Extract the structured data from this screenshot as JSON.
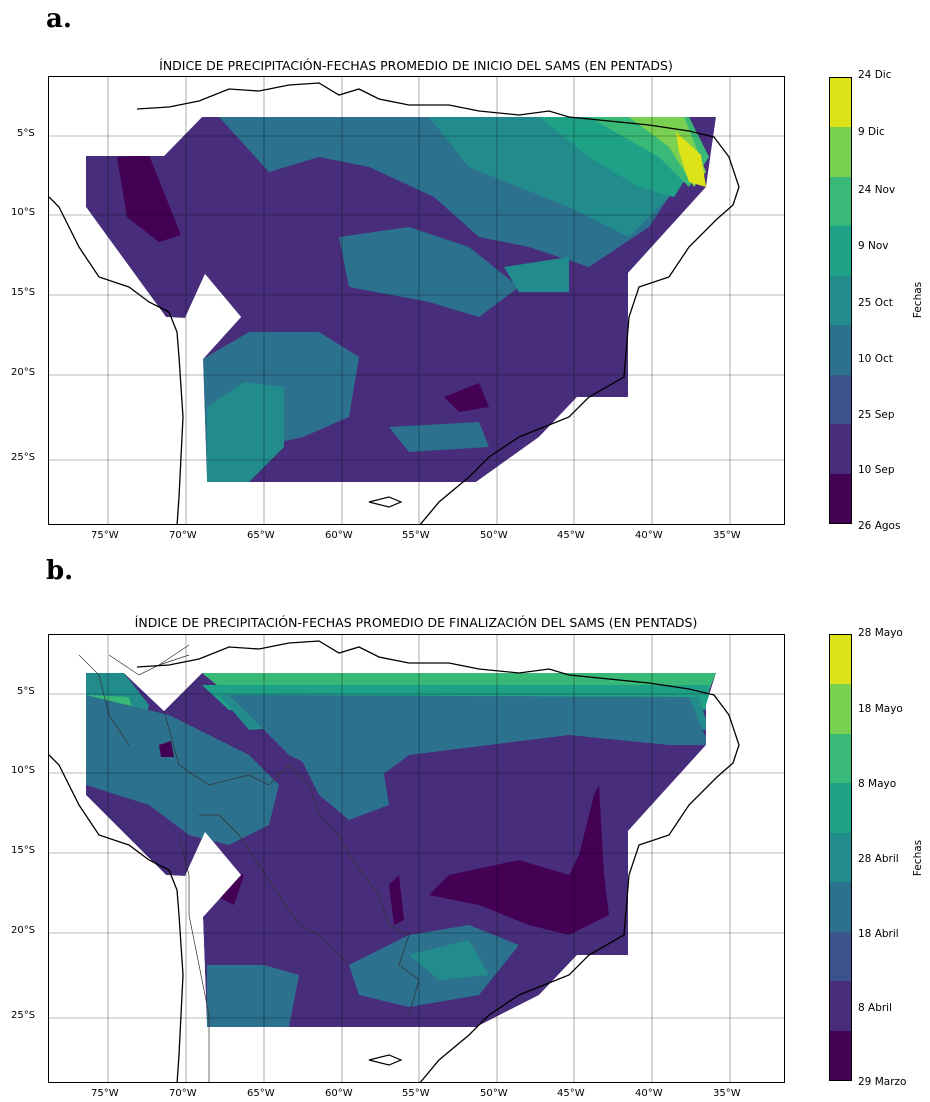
{
  "figure": {
    "panels": [
      {
        "letter": "a.",
        "title": "ÍNDICE DE PRECIPITACIÓN-FECHAS PROMEDIO DE INICIO DEL SAMS (EN PENTADS)",
        "x_ticks": [
          "75°W",
          "70°W",
          "65°W",
          "60°W",
          "55°W",
          "50°W",
          "45°W",
          "40°W",
          "35°W"
        ],
        "y_ticks": [
          "5°S",
          "10°S",
          "15°S",
          "20°S",
          "25°S"
        ],
        "colorbar_label": "Fechas",
        "colorbar_ticks": [
          "24 Dic",
          "9 Dic",
          "24 Nov",
          "9 Nov",
          "25 Oct",
          "10 Oct",
          "25 Sep",
          "10 Sep",
          "26 Agos"
        ],
        "colorbar_colors": [
          "#dde318",
          "#7ad151",
          "#38b977",
          "#1fa187",
          "#228c8d",
          "#2c718e",
          "#3b528b",
          "#472d7b",
          "#440154"
        ],
        "show_borders": false
      },
      {
        "letter": "b.",
        "title": "ÍNDICE DE PRECIPITACIÓN-FECHAS PROMEDIO DE FINALIZACIÓN DEL SAMS (EN PENTADS)",
        "x_ticks": [
          "75°W",
          "70°W",
          "65°W",
          "60°W",
          "55°W",
          "50°W",
          "45°W",
          "40°W",
          "35°W"
        ],
        "y_ticks": [
          "5°S",
          "10°S",
          "15°S",
          "20°S",
          "25°S"
        ],
        "colorbar_label": "Fechas",
        "colorbar_ticks": [
          "28 Mayo",
          "18 Mayo",
          "8 Mayo",
          "28 Abril",
          "18 Abril",
          "8 Abril",
          "29 Marzo"
        ],
        "colorbar_colors": [
          "#dde318",
          "#7ad151",
          "#38b977",
          "#1fa187",
          "#228c8d",
          "#2c718e",
          "#3b528b",
          "#472d7b",
          "#440154"
        ],
        "show_borders": true
      }
    ]
  }
}
